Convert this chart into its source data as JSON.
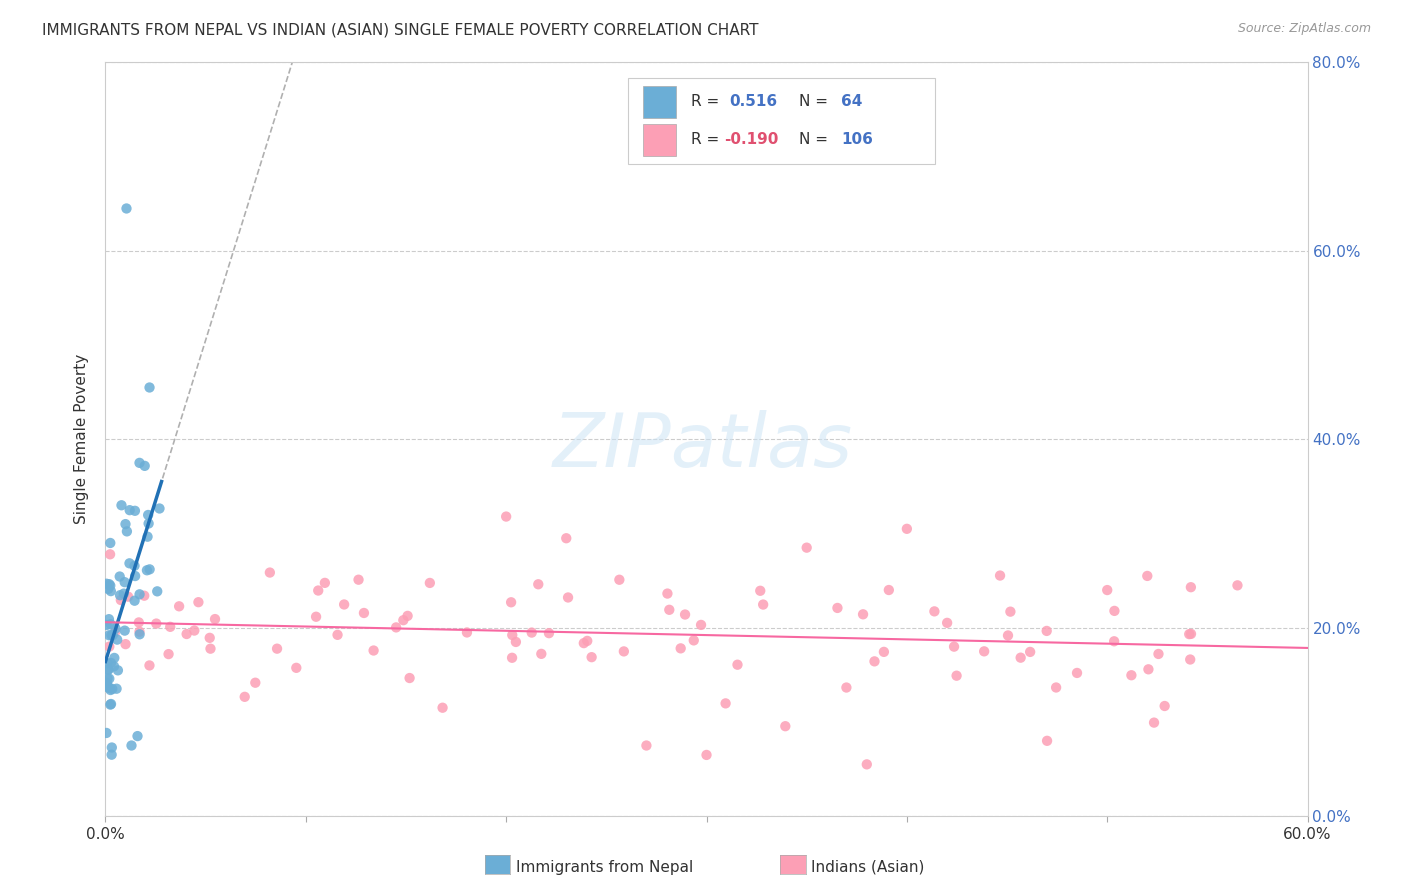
{
  "title": "IMMIGRANTS FROM NEPAL VS INDIAN (ASIAN) SINGLE FEMALE POVERTY CORRELATION CHART",
  "source": "Source: ZipAtlas.com",
  "ylabel": "Single Female Poverty",
  "xlim": [
    0.0,
    0.6
  ],
  "ylim": [
    0.0,
    0.8
  ],
  "nepal_R": 0.516,
  "nepal_N": 64,
  "indian_R": -0.19,
  "indian_N": 106,
  "nepal_color": "#6baed6",
  "indian_color": "#fc9fb5",
  "nepal_line_color": "#2171b5",
  "indian_line_color": "#f768a1",
  "background_color": "#ffffff",
  "grid_color": "#cccccc",
  "text_color": "#333333",
  "right_axis_color": "#4472c4",
  "source_color": "#999999"
}
